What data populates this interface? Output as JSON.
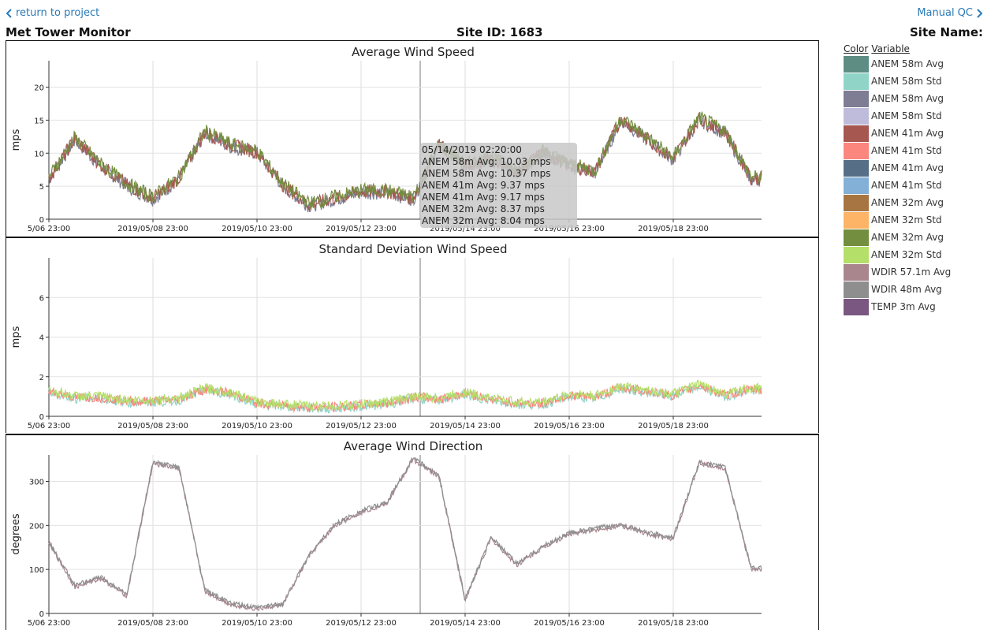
{
  "nav": {
    "back_label": "return to project",
    "next_label": "Manual QC"
  },
  "header": {
    "title": "Met Tower Monitor",
    "site_id": "Site ID: 1683",
    "site_name": "Site Name:"
  },
  "legend": {
    "col_color": "Color",
    "col_variable": "Variable",
    "items": [
      {
        "name": "ANEM 58m Avg",
        "color": "#5e8e83"
      },
      {
        "name": "ANEM 58m Std",
        "color": "#90d4c8"
      },
      {
        "name": "ANEM 58m Avg",
        "color": "#7f7d94"
      },
      {
        "name": "ANEM 58m Std",
        "color": "#bfbcdb"
      },
      {
        "name": "ANEM 41m Avg",
        "color": "#a6574f"
      },
      {
        "name": "ANEM 41m Std",
        "color": "#fb867e"
      },
      {
        "name": "ANEM 41m Avg",
        "color": "#576f86"
      },
      {
        "name": "ANEM 41m Std",
        "color": "#83b0d6"
      },
      {
        "name": "ANEM 32m Avg",
        "color": "#a77542"
      },
      {
        "name": "ANEM 32m Std",
        "color": "#fdb467"
      },
      {
        "name": "ANEM 32m Avg",
        "color": "#738e3f"
      },
      {
        "name": "ANEM 32m Std",
        "color": "#b4df69"
      },
      {
        "name": "WDIR 57.1m Avg",
        "color": "#a9858e"
      },
      {
        "name": "WDIR 48m Avg",
        "color": "#8e8e8e"
      },
      {
        "name": "TEMP 3m Avg",
        "color": "#7a5780"
      }
    ]
  },
  "tooltip": {
    "time": "05/14/2019 02:20:00",
    "lines": [
      "ANEM 58m Avg: 10.03 mps",
      "ANEM 58m Avg: 10.37 mps",
      "ANEM 41m Avg: 9.37 mps",
      "ANEM 41m Avg: 9.17 mps",
      "ANEM 32m Avg: 8.37 mps",
      "ANEM 32m Avg: 8.04 mps"
    ]
  },
  "x_ticks": [
    "5/06 23:00",
    "2019/05/08 23:00",
    "2019/05/10 23:00",
    "2019/05/12 23:00",
    "2019/05/14 23:00",
    "2019/05/16 23:00",
    "2019/05/18 23:00"
  ],
  "chart_data": [
    {
      "type": "line",
      "title": "Average Wind Speed",
      "ylabel": "mps",
      "ylim": [
        0,
        24
      ],
      "yticks": [
        0,
        5,
        10,
        15,
        20
      ],
      "x_range": [
        "2019/05/06 23:00",
        "2019/05/20 09:00"
      ],
      "grid": true,
      "series": [
        {
          "name": "ANEM 58m Avg",
          "color": "#7f7d94"
        },
        {
          "name": "ANEM 41m Avg",
          "color": "#a6574f"
        },
        {
          "name": "ANEM 32m Avg",
          "color": "#738e3f"
        }
      ],
      "x": [
        0,
        0.5,
        1,
        1.5,
        2,
        2.5,
        3,
        3.5,
        4,
        4.5,
        5,
        5.5,
        6,
        6.5,
        7,
        7.5,
        8,
        8.5,
        9,
        9.5,
        10,
        10.5,
        11,
        11.5,
        12,
        12.5,
        13,
        13.5
      ],
      "values": [
        6,
        12,
        8,
        5,
        3,
        6,
        13,
        11,
        10,
        5,
        2,
        3,
        4,
        4,
        3,
        11,
        8,
        9,
        7,
        10,
        8,
        7,
        15,
        12,
        9,
        15,
        13,
        6
      ]
    },
    {
      "type": "line",
      "title": "Standard Deviation Wind Speed",
      "ylabel": "mps",
      "ylim": [
        0,
        8
      ],
      "yticks": [
        0,
        2,
        4,
        6
      ],
      "x_range": [
        "2019/05/06 23:00",
        "2019/05/20 09:00"
      ],
      "grid": true,
      "series": [
        {
          "name": "ANEM 58m Std",
          "color": "#90d4c8"
        },
        {
          "name": "ANEM 41m Std",
          "color": "#fb867e"
        },
        {
          "name": "ANEM 32m Std",
          "color": "#b4df69"
        }
      ],
      "x": [
        0,
        0.5,
        1,
        1.5,
        2,
        2.5,
        3,
        3.5,
        4,
        4.5,
        5,
        5.5,
        6,
        6.5,
        7,
        7.5,
        8,
        8.5,
        9,
        9.5,
        10,
        10.5,
        11,
        11.5,
        12,
        12.5,
        13,
        13.5
      ],
      "values": [
        1.2,
        0.9,
        0.9,
        0.7,
        0.7,
        0.8,
        1.3,
        1.1,
        0.6,
        0.5,
        0.4,
        0.4,
        0.5,
        0.6,
        0.9,
        0.8,
        1.1,
        0.8,
        0.6,
        0.6,
        1.0,
        0.9,
        1.4,
        1.2,
        1.0,
        1.5,
        1.0,
        1.3
      ]
    },
    {
      "type": "line",
      "title": "Average Wind Direction",
      "ylabel": "degrees",
      "ylim": [
        0,
        360
      ],
      "yticks": [
        0,
        100,
        200,
        300
      ],
      "x_range": [
        "2019/05/06 23:00",
        "2019/05/20 09:00"
      ],
      "grid": true,
      "series": [
        {
          "name": "WDIR 57.1m Avg",
          "color": "#a9858e"
        },
        {
          "name": "WDIR 48m Avg",
          "color": "#8e8e8e"
        }
      ],
      "x": [
        0,
        0.5,
        1,
        1.5,
        2,
        2.5,
        3,
        3.5,
        4,
        4.5,
        5,
        5.5,
        6,
        6.5,
        7,
        7.5,
        8,
        8.5,
        9,
        9.5,
        10,
        10.5,
        11,
        11.5,
        12,
        12.5,
        13,
        13.5
      ],
      "values": [
        160,
        60,
        80,
        40,
        340,
        330,
        50,
        20,
        10,
        20,
        130,
        200,
        230,
        250,
        350,
        310,
        30,
        170,
        110,
        150,
        180,
        190,
        200,
        180,
        170,
        340,
        330,
        100
      ]
    }
  ]
}
